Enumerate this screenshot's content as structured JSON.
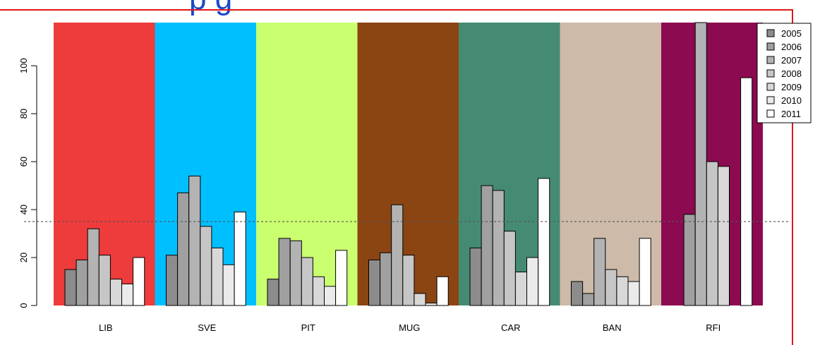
{
  "chart_data": {
    "type": "bar",
    "title": "",
    "xlabel": "",
    "ylabel": "",
    "ylim": [
      0,
      118
    ],
    "yticks": [
      0,
      20,
      40,
      60,
      80,
      100
    ],
    "reference_line": 35,
    "categories": [
      "LIB",
      "SVE",
      "PIT",
      "MUG",
      "CAR",
      "BAN",
      "RFI"
    ],
    "category_colors": [
      "#ee3b3b",
      "#00bfff",
      "#caff70",
      "#8b4513",
      "#458b74",
      "#cdbaa8",
      "#8b0a50"
    ],
    "series": [
      {
        "name": "2005",
        "color": "#8c8c8c",
        "values": [
          15,
          21,
          11,
          19,
          24,
          10,
          0
        ]
      },
      {
        "name": "2006",
        "color": "#a0a0a0",
        "values": [
          19,
          47,
          28,
          22,
          50,
          5,
          38
        ]
      },
      {
        "name": "2007",
        "color": "#b3b3b3",
        "values": [
          32,
          54,
          27,
          42,
          48,
          28,
          118
        ]
      },
      {
        "name": "2008",
        "color": "#c6c6c6",
        "values": [
          21,
          33,
          20,
          21,
          31,
          15,
          60
        ]
      },
      {
        "name": "2009",
        "color": "#d8d8d8",
        "values": [
          11,
          24,
          12,
          5,
          14,
          12,
          58
        ]
      },
      {
        "name": "2010",
        "color": "#ebebeb",
        "values": [
          9,
          17,
          8,
          1,
          20,
          10,
          0
        ]
      },
      {
        "name": "2011",
        "color": "#ffffff",
        "values": [
          20,
          39,
          23,
          12,
          53,
          28,
          95
        ]
      }
    ],
    "grid": false,
    "legend_position": "top-right"
  },
  "header": {
    "title_fragment": "p         g"
  }
}
